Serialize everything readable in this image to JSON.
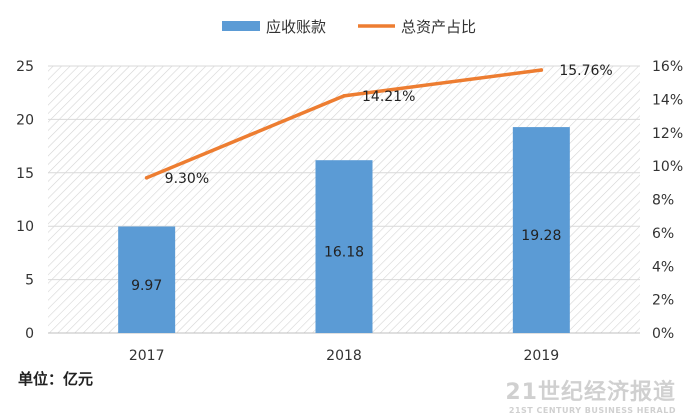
{
  "chart_data": {
    "type": "bar",
    "categories": [
      "2017",
      "2018",
      "2019"
    ],
    "series": [
      {
        "name": "应收账款",
        "type": "bar",
        "axis": "left",
        "values": [
          9.97,
          16.18,
          19.28
        ],
        "labels": [
          "9.97",
          "16.18",
          "19.28"
        ],
        "color": "#5b9bd5"
      },
      {
        "name": "总资产占比",
        "type": "line",
        "axis": "right",
        "values": [
          9.3,
          14.21,
          15.76
        ],
        "labels": [
          "9.30%",
          "14.21%",
          "15.76%"
        ],
        "color": "#ed7d31"
      }
    ],
    "y_left": {
      "ylim": [
        0,
        25
      ],
      "ticks": [
        "0",
        "5",
        "10",
        "15",
        "20",
        "25"
      ]
    },
    "y_right": {
      "ylim": [
        0,
        16
      ],
      "ticks": [
        "0%",
        "2%",
        "4%",
        "6%",
        "8%",
        "10%",
        "12%",
        "14%",
        "16%"
      ]
    },
    "legend_position": "top-center",
    "grid": true
  },
  "unit_label": "单位：亿元",
  "watermark": {
    "main": "21世纪经济报道",
    "sub": "21ST CENTURY BUSINESS HERALD"
  }
}
